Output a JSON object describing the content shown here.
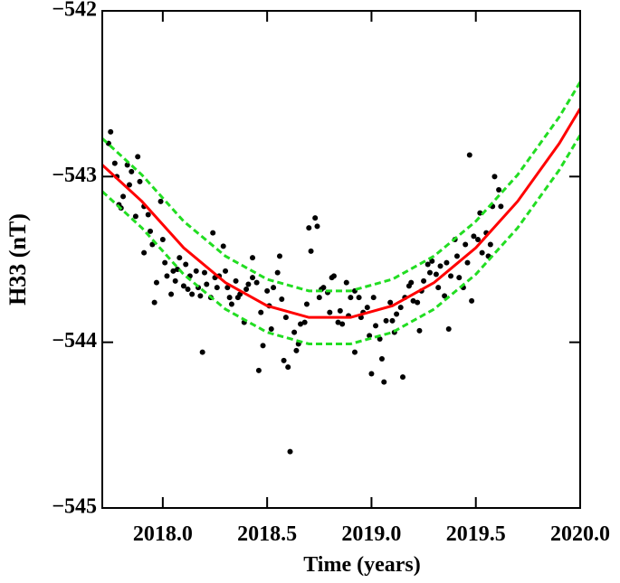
{
  "chart_data": {
    "type": "scatter",
    "y_label": "H33 (nT)",
    "x_label": "Time (years)",
    "xlim": [
      2017.71,
      2020.0
    ],
    "ylim": [
      -545,
      -542
    ],
    "xticks": [
      {
        "value": 2018.0,
        "label": "2018.0"
      },
      {
        "value": 2018.5,
        "label": "2018.5"
      },
      {
        "value": 2019.0,
        "label": "2019.0"
      },
      {
        "value": 2019.5,
        "label": "2019.5"
      },
      {
        "value": 2020.0,
        "label": "2020.0"
      }
    ],
    "yticks": [
      {
        "value": -545,
        "label": "−545"
      },
      {
        "value": -544,
        "label": "−544"
      },
      {
        "value": -543,
        "label": "−543"
      },
      {
        "value": -542,
        "label": "−542"
      }
    ],
    "grid": false,
    "series": [
      {
        "type": "scatter",
        "color": "#000000",
        "x": [
          2017.74,
          2017.75,
          2017.77,
          2017.78,
          2017.79,
          2017.8,
          2017.81,
          2017.83,
          2017.84,
          2017.85,
          2017.87,
          2017.88,
          2017.89,
          2017.91,
          2017.91,
          2017.93,
          2017.94,
          2017.95,
          2017.96,
          2017.97,
          2017.99,
          2018.0,
          2018.01,
          2018.02,
          2018.04,
          2018.05,
          2018.06,
          2018.07,
          2018.08,
          2018.1,
          2018.11,
          2018.12,
          2018.13,
          2018.14,
          2018.16,
          2018.17,
          2018.18,
          2018.19,
          2018.2,
          2018.21,
          2018.23,
          2018.24,
          2018.25,
          2018.26,
          2018.27,
          2018.29,
          2018.3,
          2018.31,
          2018.32,
          2018.33,
          2018.35,
          2018.36,
          2018.37,
          2018.39,
          2018.4,
          2018.41,
          2018.43,
          2018.43,
          2018.45,
          2018.46,
          2018.47,
          2018.48,
          2018.5,
          2018.51,
          2018.52,
          2018.53,
          2018.55,
          2018.56,
          2018.57,
          2018.58,
          2018.59,
          2018.6,
          2018.61,
          2018.63,
          2018.64,
          2018.65,
          2018.66,
          2018.68,
          2018.69,
          2018.7,
          2018.71,
          2018.73,
          2018.74,
          2018.75,
          2018.76,
          2018.77,
          2018.79,
          2018.8,
          2018.81,
          2018.82,
          2018.84,
          2018.85,
          2018.86,
          2018.88,
          2018.89,
          2018.9,
          2018.92,
          2018.92,
          2018.94,
          2018.95,
          2018.96,
          2018.98,
          2018.99,
          2019.0,
          2019.01,
          2019.02,
          2019.04,
          2019.05,
          2019.06,
          2019.07,
          2019.09,
          2019.1,
          2019.11,
          2019.12,
          2019.14,
          2019.15,
          2019.16,
          2019.18,
          2019.19,
          2019.2,
          2019.22,
          2019.23,
          2019.24,
          2019.25,
          2019.27,
          2019.28,
          2019.29,
          2019.31,
          2019.32,
          2019.33,
          2019.35,
          2019.36,
          2019.37,
          2019.38,
          2019.4,
          2019.41,
          2019.42,
          2019.44,
          2019.45,
          2019.46,
          2019.47,
          2019.48,
          2019.49,
          2019.51,
          2019.52,
          2019.53,
          2019.55,
          2019.56,
          2019.57,
          2019.58,
          2019.59,
          2019.61,
          2019.62
        ],
        "values": [
          -542.8,
          -542.73,
          -542.92,
          -543.0,
          -543.17,
          -543.19,
          -543.12,
          -542.93,
          -543.05,
          -542.97,
          -543.24,
          -542.88,
          -543.03,
          -543.18,
          -543.46,
          -543.23,
          -543.33,
          -543.41,
          -543.76,
          -543.64,
          -543.15,
          -543.38,
          -543.52,
          -543.6,
          -543.71,
          -543.57,
          -543.63,
          -543.56,
          -543.49,
          -543.66,
          -543.53,
          -543.68,
          -543.6,
          -543.71,
          -543.57,
          -543.67,
          -543.72,
          -544.06,
          -543.58,
          -543.65,
          -543.73,
          -543.34,
          -543.61,
          -543.67,
          -543.6,
          -543.42,
          -543.57,
          -543.67,
          -543.73,
          -543.77,
          -543.63,
          -543.73,
          -543.71,
          -543.88,
          -543.68,
          -543.65,
          -543.61,
          -543.49,
          -543.64,
          -544.17,
          -543.82,
          -544.02,
          -543.69,
          -543.78,
          -543.92,
          -543.67,
          -543.58,
          -543.48,
          -543.74,
          -544.11,
          -543.85,
          -544.15,
          -544.66,
          -543.94,
          -544.05,
          -544.01,
          -543.89,
          -543.88,
          -543.77,
          -543.31,
          -543.45,
          -543.25,
          -543.3,
          -543.73,
          -543.68,
          -543.67,
          -543.7,
          -543.82,
          -543.61,
          -543.6,
          -543.88,
          -543.81,
          -543.89,
          -543.64,
          -543.84,
          -543.73,
          -543.69,
          -544.06,
          -543.73,
          -543.85,
          -543.82,
          -543.79,
          -543.96,
          -544.19,
          -543.73,
          -543.9,
          -543.98,
          -544.1,
          -544.24,
          -543.87,
          -543.76,
          -543.87,
          -543.94,
          -543.83,
          -543.79,
          -544.21,
          -543.73,
          -543.66,
          -543.64,
          -543.75,
          -543.76,
          -543.93,
          -543.69,
          -543.63,
          -543.53,
          -543.58,
          -543.51,
          -543.59,
          -543.67,
          -543.54,
          -543.72,
          -543.52,
          -543.92,
          -543.6,
          -543.38,
          -543.48,
          -543.61,
          -543.67,
          -543.41,
          -543.52,
          -542.87,
          -543.75,
          -543.36,
          -543.38,
          -543.22,
          -543.46,
          -543.34,
          -543.48,
          -543.41,
          -543.18,
          -543.0,
          -543.08,
          -543.18
        ]
      },
      {
        "type": "line",
        "color": "#ff0000",
        "dashed": false,
        "x": [
          2017.71,
          2017.9,
          2018.1,
          2018.3,
          2018.5,
          2018.7,
          2018.9,
          2019.1,
          2019.3,
          2019.5,
          2019.7,
          2019.9,
          2020.0
        ],
        "values": [
          -542.93,
          -543.15,
          -543.43,
          -543.64,
          -543.78,
          -543.85,
          -543.85,
          -543.78,
          -543.64,
          -543.43,
          -543.15,
          -542.8,
          -542.59
        ]
      },
      {
        "type": "line",
        "color": "#22dd22",
        "dashed": true,
        "x": [
          2017.71,
          2017.9,
          2018.1,
          2018.3,
          2018.5,
          2018.7,
          2018.9,
          2019.1,
          2019.3,
          2019.5,
          2019.7,
          2019.9,
          2020.0
        ],
        "values": [
          -542.77,
          -542.99,
          -543.27,
          -543.48,
          -543.62,
          -543.69,
          -543.69,
          -543.62,
          -543.48,
          -543.27,
          -542.99,
          -542.64,
          -542.43
        ]
      },
      {
        "type": "line",
        "color": "#22dd22",
        "dashed": true,
        "x": [
          2017.71,
          2017.9,
          2018.1,
          2018.3,
          2018.5,
          2018.7,
          2018.9,
          2019.1,
          2019.3,
          2019.5,
          2019.7,
          2019.9,
          2020.0
        ],
        "values": [
          -543.09,
          -543.31,
          -543.59,
          -543.8,
          -543.94,
          -544.01,
          -544.01,
          -543.94,
          -543.8,
          -543.59,
          -543.31,
          -542.96,
          -542.75
        ]
      }
    ]
  }
}
